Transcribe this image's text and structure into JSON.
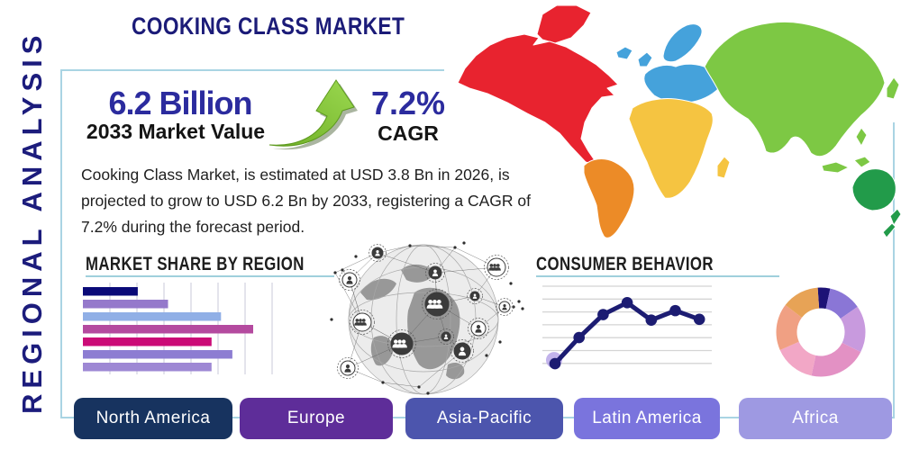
{
  "title": "COOKING CLASS MARKET",
  "side_label": "REGIONAL ANALYSIS",
  "stats": {
    "market_value": "6.2 Billion",
    "market_value_label": "2033 Market Value",
    "cagr_value": "7.2%",
    "cagr_label": "CAGR",
    "description": "Cooking Class Market, is estimated at USD 3.8 Bn in 2026, is projected to grow to USD 6.2 Bn by 2033, registering a CAGR of 7.2% during the forecast period."
  },
  "colors": {
    "navy_text": "#1c1c7c",
    "stat_navy": "#2b2b9e",
    "frame_border": "#a9d4e3",
    "underline": "#9fd0dc",
    "arrow_green": "#8cc63e",
    "arrow_green_dark": "#6fae26",
    "arrow_shadow": "#8e9c80"
  },
  "map_colors": {
    "north_america": "#e8232f",
    "greenland": "#e8232f",
    "south_america": "#ec8b27",
    "europe": "#45a2db",
    "africa": "#f5c441",
    "asia": "#7dc844",
    "australia": "#229b4a"
  },
  "chart_data": [
    {
      "type": "bar",
      "title": "MARKET SHARE BY REGION",
      "orientation": "horizontal",
      "categories": [
        "bar1",
        "bar2",
        "bar3",
        "bar4",
        "bar5",
        "bar6",
        "bar7"
      ],
      "values": [
        29,
        45,
        73,
        90,
        68,
        79,
        68
      ],
      "value_unit": "percent-of-axis (estimated, no axis labels shown)",
      "colors": [
        "#0a0a78",
        "#9579cb",
        "#90afe6",
        "#b44a9f",
        "#cb0b77",
        "#8d7dd2",
        "#9e88d4"
      ],
      "xlim": [
        0,
        100
      ],
      "grid": "vertical-lines",
      "gridline_color": "#d9d9e3"
    },
    {
      "type": "line",
      "title": "CONSUMER BEHAVIOR",
      "x": [
        1,
        2,
        3,
        4,
        5,
        6,
        7
      ],
      "values": [
        9,
        42,
        71,
        86,
        64,
        76,
        65
      ],
      "value_unit": "percent-of-axis (estimated, no axis labels shown)",
      "ylim": [
        0,
        100
      ],
      "line_color": "#1c1c72",
      "marker": "dot",
      "first_point_halo_color": "#b7a6e8",
      "grid": "horizontal-lines",
      "gridline_color": "#d4d4d4"
    },
    {
      "type": "pie",
      "subtype": "donut",
      "start_angle_deg": -4,
      "values": [
        4.5,
        12,
        17,
        21,
        15,
        17,
        13.5
      ],
      "colors": [
        "#1d1276",
        "#8a76d6",
        "#c89ade",
        "#e391c4",
        "#f2a7c6",
        "#f0a083",
        "#e7a356"
      ],
      "legend": "none"
    }
  ],
  "footer": {
    "regions": [
      {
        "label": "North America",
        "color": "#17335f"
      },
      {
        "label": "Europe",
        "color": "#5e2d99"
      },
      {
        "label": "Asia-Pacific",
        "color": "#4c55ad"
      },
      {
        "label": "Latin America",
        "color": "#7a74dd"
      },
      {
        "label": "Africa",
        "color": "#9e99e2"
      }
    ]
  },
  "icons": {
    "growth_arrow": "growth-arrow-icon",
    "world_map": "world-map-graphic",
    "globe_network": "globe-network-graphic",
    "person_node": "person-node-icon"
  }
}
